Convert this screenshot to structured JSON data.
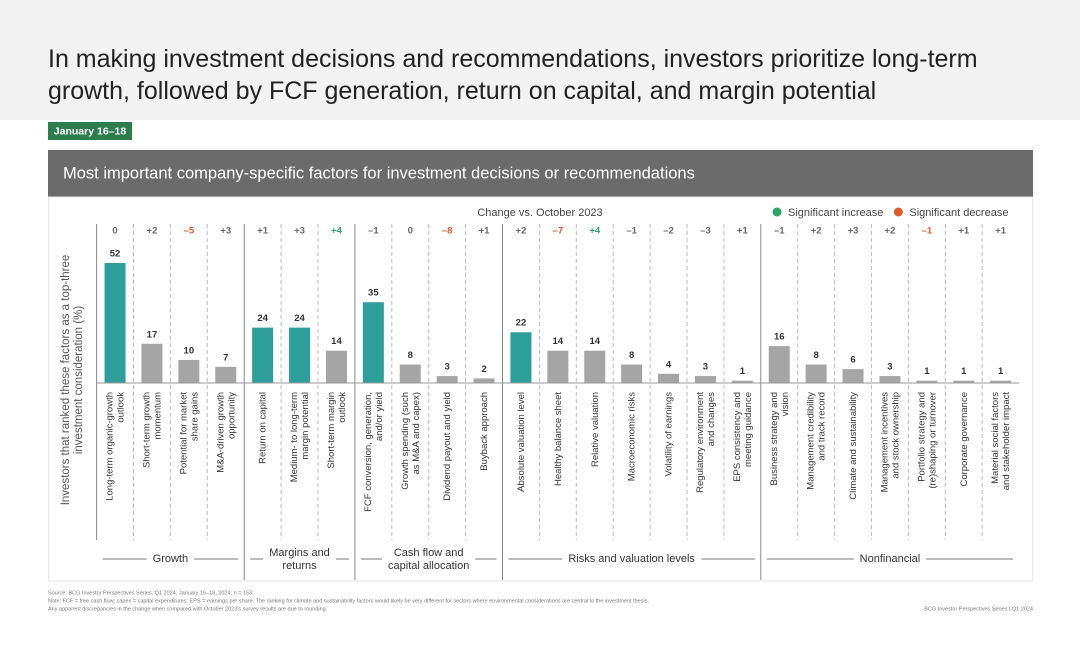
{
  "chart_data": {
    "type": "bar",
    "title": [
      "In making investment decisions and recommendations, investors prioritize long-term",
      "growth, followed by FCF generation, return on capital, and margin potential"
    ],
    "date_tag": "January 16–18",
    "subtitle": "Most important company-specific factors for investment decisions or recommendations",
    "change_title": "Change vs. October 2023",
    "legend": [
      {
        "name": "Significant increase",
        "color": "#2ea36a"
      },
      {
        "name": "Significant decrease",
        "color": "#e05a2b"
      }
    ],
    "y_label": [
      "Investors that ranked these factors as a top-three",
      "investment consideration (%)"
    ],
    "groups": [
      {
        "label": [
          "Growth"
        ],
        "categories": [
          [
            "Long-term organic-growth",
            "outlook"
          ],
          [
            "Short-term growth",
            "momentum"
          ],
          [
            "Potential for market",
            "share gains"
          ],
          [
            "M&A-driven growth",
            "opportunity"
          ]
        ],
        "values": [
          52,
          17,
          10,
          7
        ],
        "colors": [
          "#2e9e9a",
          "#a5a5a5",
          "#a5a5a5",
          "#a5a5a5"
        ],
        "changes": [
          0,
          2,
          -5,
          3
        ],
        "change_labels": [
          "0",
          "+2",
          "–5",
          "+3"
        ],
        "change_colors": [
          "#666666",
          "#666666",
          "#e05a2b",
          "#666666"
        ]
      },
      {
        "label": [
          "Margins and",
          "returns"
        ],
        "categories": [
          [
            "Return on capital"
          ],
          [
            "Medium- to long-term",
            "margin potential"
          ],
          [
            "Short-term margin",
            "outlook"
          ]
        ],
        "values": [
          24,
          24,
          14
        ],
        "colors": [
          "#2e9e9a",
          "#2e9e9a",
          "#a5a5a5"
        ],
        "changes": [
          1,
          3,
          4
        ],
        "change_labels": [
          "+1",
          "+3",
          "+4"
        ],
        "change_colors": [
          "#666666",
          "#666666",
          "#2ea36a"
        ]
      },
      {
        "label": [
          "Cash flow and",
          "capital allocation"
        ],
        "categories": [
          [
            "FCF conversion, generation,",
            "and/or yield"
          ],
          [
            "Growth spending (such",
            "as M&A and capex)"
          ],
          [
            "Dividend payout and yield"
          ],
          [
            "Buyback approach"
          ]
        ],
        "values": [
          35,
          8,
          3,
          2
        ],
        "colors": [
          "#2e9e9a",
          "#a5a5a5",
          "#a5a5a5",
          "#a5a5a5"
        ],
        "changes": [
          -1,
          0,
          -8,
          1
        ],
        "change_labels": [
          "–1",
          "0",
          "–8",
          "+1"
        ],
        "change_colors": [
          "#666666",
          "#666666",
          "#e05a2b",
          "#666666"
        ]
      },
      {
        "label": [
          "Risks and valuation levels"
        ],
        "categories": [
          [
            "Absolute valuation level"
          ],
          [
            "Healthy balance sheet"
          ],
          [
            "Relative valuation"
          ],
          [
            "Macroeconomic risks"
          ],
          [
            "Volatility of earnings"
          ],
          [
            "Regulatory environment",
            "and changes"
          ],
          [
            "EPS consistency and",
            "meeting guidance"
          ]
        ],
        "values": [
          22,
          14,
          14,
          8,
          4,
          3,
          1
        ],
        "colors": [
          "#2e9e9a",
          "#a5a5a5",
          "#a5a5a5",
          "#a5a5a5",
          "#a5a5a5",
          "#a5a5a5",
          "#a5a5a5"
        ],
        "changes": [
          2,
          -7,
          4,
          -1,
          -2,
          -3,
          1
        ],
        "change_labels": [
          "+2",
          "–7",
          "+4",
          "–1",
          "–2",
          "–3",
          "+1"
        ],
        "change_colors": [
          "#666666",
          "#e05a2b",
          "#2ea36a",
          "#666666",
          "#666666",
          "#666666",
          "#666666"
        ]
      },
      {
        "label": [
          "Nonfinancial"
        ],
        "categories": [
          [
            "Business strategy and",
            "vision"
          ],
          [
            "Management credibility",
            "and track record"
          ],
          [
            "Climate and sustainability"
          ],
          [
            "Management incentives",
            "and stock ownership"
          ],
          [
            "Portfolio strategy and",
            "(re)shaping or turnover"
          ],
          [
            "Corporate governance"
          ],
          [
            "Material social factors",
            "and stakeholder impact"
          ]
        ],
        "values": [
          16,
          8,
          6,
          3,
          1,
          1,
          1
        ],
        "colors": [
          "#a5a5a5",
          "#a5a5a5",
          "#a5a5a5",
          "#a5a5a5",
          "#a5a5a5",
          "#a5a5a5",
          "#a5a5a5"
        ],
        "changes": [
          -1,
          2,
          3,
          2,
          -1,
          1,
          1
        ],
        "change_labels": [
          "–1",
          "+2",
          "+3",
          "+2",
          "–1",
          "+1",
          "+1"
        ],
        "change_colors": [
          "#666666",
          "#666666",
          "#666666",
          "#666666",
          "#e05a2b",
          "#666666",
          "#666666"
        ]
      }
    ],
    "footnotes": [
      "Source: BCG Investor Perspectives Series, Q1 2024, January 16–18, 2024; n = 153.",
      "Note: FCF = free cash flow; capex = capital expenditures; EPS = earnings per share. The ranking for climate and sustainability factors would likely be very different for sectors where environmental considerations are central to the investment thesis.",
      "Any apparent discrepancies in the change when compared with October 2023's survey results are due to rounding."
    ],
    "credit": "BCG Investor Perspectives Series | Q1 2024"
  }
}
